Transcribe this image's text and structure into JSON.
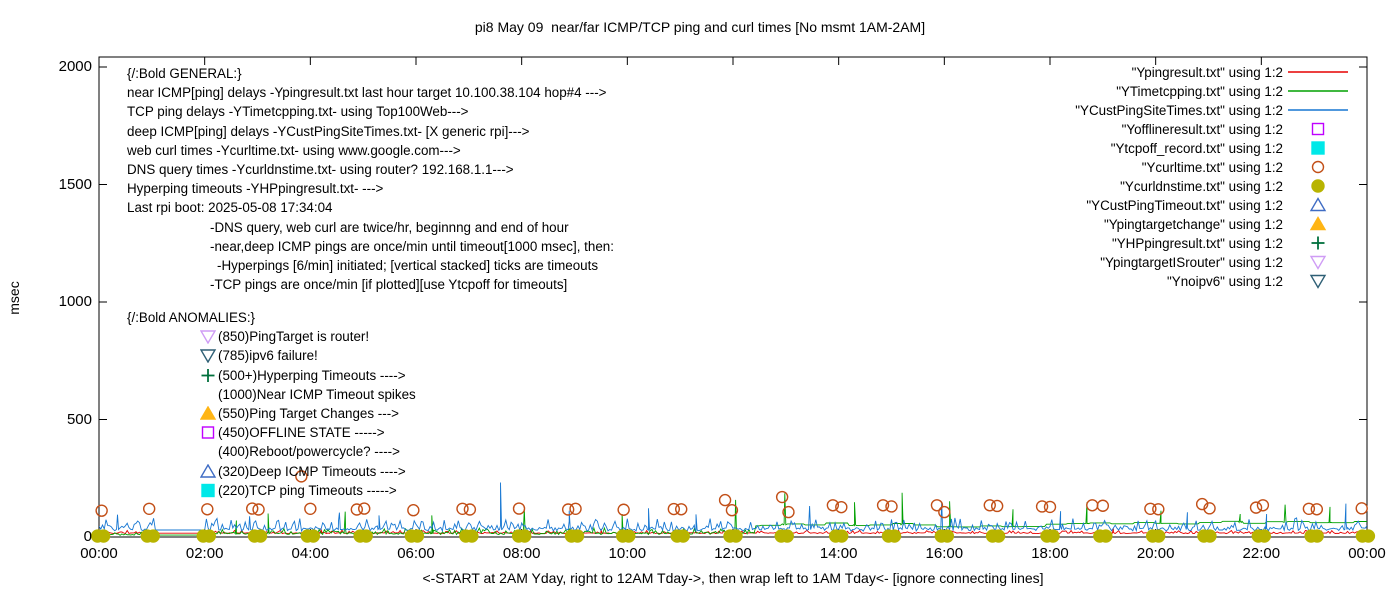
{
  "title": "pi8 May 09  near/far ICMP/TCP ping and curl times [No msmt 1AM-2AM]",
  "y_axis": {
    "label": "msec",
    "ticks": [
      0,
      500,
      1000,
      1500,
      2000
    ]
  },
  "x_axis": {
    "labels": [
      "00:00",
      "02:00",
      "04:00",
      "06:00",
      "08:00",
      "10:00",
      "12:00",
      "14:00",
      "16:00",
      "18:00",
      "20:00",
      "22:00",
      "00:00"
    ],
    "footer": "<-START at 2AM Yday, right to 12AM Tday->, then wrap left to 1AM Tday<- [ignore connecting lines]"
  },
  "colors": {
    "axis": "#000000",
    "red": "#e60000",
    "green": "#00a000",
    "blue": "#1777d2",
    "magenta": "#bf00ff",
    "cyan": "#00e8e8",
    "orange_circle": "#c24f17",
    "olive": "#b8b400",
    "blue_triangle": "#3f6cc4",
    "gold_triangle": "#ffb515",
    "dark_green": "#00703c",
    "violet": "#cf9cf5",
    "steel": "#2e5f75"
  },
  "general": {
    "lines": [
      {
        "indent": 0,
        "text": "{/:Bold GENERAL:}"
      },
      {
        "indent": 0,
        "text": "near ICMP[ping] delays -Ypingresult.txt last hour target 10.100.38.104 hop#4 --->"
      },
      {
        "indent": 0,
        "text": "TCP ping delays -YTimetcpping.txt- using Top100Web--->"
      },
      {
        "indent": 0,
        "text": "deep ICMP[ping] delays -YCustPingSiteTimes.txt- [X generic rpi]--->"
      },
      {
        "indent": 0,
        "text": "web curl times -Ycurltime.txt- using www.google.com--->"
      },
      {
        "indent": 0,
        "text": "DNS query times -Ycurldnstime.txt- using router? 192.168.1.1--->"
      },
      {
        "indent": 0,
        "text": "Hyperping timeouts -YHPpingresult.txt- --->"
      },
      {
        "indent": 0,
        "text": "Last rpi boot: 2025-05-08 17:34:04"
      },
      {
        "indent": 83,
        "text": "-DNS query, web curl are twice/hr, beginnng and end of hour"
      },
      {
        "indent": 83,
        "text": "-near,deep ICMP pings are once/min until timeout[1000 msec], then:"
      },
      {
        "indent": 90,
        "text": "-Hyperpings [6/min] initiated; [vertical stacked] ticks are timeouts"
      },
      {
        "indent": 83,
        "text": "-TCP pings are once/min [if plotted][use Ytcpoff for timeouts]"
      }
    ]
  },
  "anomalies": {
    "header": "{/:Bold ANOMALIES:}",
    "lines": [
      {
        "marker": "tri-down-open",
        "color": "#cf9cf5",
        "text": "(850)PingTarget is router!"
      },
      {
        "marker": "tri-down-open",
        "color": "#2e5f75",
        "text": "(785)ipv6 failure!"
      },
      {
        "marker": "plus",
        "color": "#00703c",
        "text": "(500+)Hyperping Timeouts ---->"
      },
      {
        "marker": null,
        "color": null,
        "text": "(1000)Near ICMP Timeout spikes"
      },
      {
        "marker": "tri-up-filled",
        "color": "#ffb515",
        "text": "(550)Ping Target Changes --->"
      },
      {
        "marker": "square-open",
        "color": "#bf00ff",
        "text": "(450)OFFLINE STATE ----->"
      },
      {
        "marker": null,
        "color": null,
        "text": "(400)Reboot/powercycle? ---->"
      },
      {
        "marker": "tri-up-open",
        "color": "#3f6cc4",
        "text": "(320)Deep ICMP Timeouts ---->"
      },
      {
        "marker": "square-filled",
        "color": "#00e8e8",
        "text": "(220)TCP ping Timeouts ----->"
      }
    ]
  },
  "legend": {
    "entries": [
      {
        "label": "\"Ypingresult.txt\" using 1:2",
        "sample": "line",
        "color": "#e60000"
      },
      {
        "label": "\"YTimetcpping.txt\" using 1:2",
        "sample": "line",
        "color": "#00a000"
      },
      {
        "label": "\"YCustPingSiteTimes.txt\" using 1:2",
        "sample": "line",
        "color": "#1777d2"
      },
      {
        "label": "\"Yofflineresult.txt\" using 1:2",
        "sample": "square-open",
        "color": "#bf00ff"
      },
      {
        "label": "\"Ytcpoff_record.txt\" using 1:2",
        "sample": "square-filled",
        "color": "#00e8e8"
      },
      {
        "label": "\"Ycurltime.txt\" using 1:2",
        "sample": "circle-open",
        "color": "#c24f17"
      },
      {
        "label": "\"Ycurldnstime.txt\" using 1:2",
        "sample": "circle-filled",
        "color": "#b8b400"
      },
      {
        "label": "\"YCustPingTimeout.txt\" using 1:2",
        "sample": "tri-up-open",
        "color": "#3f6cc4"
      },
      {
        "label": "\"Ypingtargetchange\" using 1:2",
        "sample": "tri-up-filled",
        "color": "#ffb515"
      },
      {
        "label": "\"YHPpingresult.txt\" using 1:2",
        "sample": "plus",
        "color": "#00703c"
      },
      {
        "label": "\"YpingtargetISrouter\" using 1:2",
        "sample": "tri-down-open",
        "color": "#cf9cf5"
      },
      {
        "label": "\"Ynoipv6\" using 1:2",
        "sample": "tri-down-open",
        "color": "#2e5f75"
      }
    ]
  },
  "chart_data": {
    "type": "line",
    "x_unit": "hours (00:00-24:00, 2h major ticks)",
    "xlim_hours": [
      0,
      24
    ],
    "ylabel": "msec",
    "ylim": [
      0,
      2000
    ],
    "grid": false,
    "legend_position": "top-right inside",
    "no_measurement_window_hours": [
      1.05,
      2.0
    ],
    "series": [
      {
        "name": "Ypingresult.txt",
        "style": "line",
        "color": "#e60000",
        "seed": 11,
        "segments": [
          {
            "from": 0,
            "to": 1.05,
            "base": 16,
            "amp": 6
          },
          {
            "from": 1.05,
            "to": 2.0,
            "base": 16,
            "amp": 0
          },
          {
            "from": 2.0,
            "to": 24.1,
            "base": 16,
            "amp": 6
          }
        ],
        "spikes": [
          [
            4.2,
            38
          ],
          [
            9.5,
            34
          ],
          [
            19.2,
            36
          ]
        ]
      },
      {
        "name": "YTimetcpping.txt",
        "style": "line",
        "color": "#00a000",
        "seed": 22,
        "segments": [
          {
            "from": 0,
            "to": 1.05,
            "base": 11,
            "amp": 12
          },
          {
            "from": 1.05,
            "to": 2.0,
            "base": 8,
            "amp": 0
          },
          {
            "from": 2.0,
            "to": 12.4,
            "base": 14,
            "amp": 12
          },
          {
            "from": 12.4,
            "to": 15.8,
            "base": 52,
            "amp": 6,
            "hold": true
          },
          {
            "from": 15.8,
            "to": 17.9,
            "base": 46,
            "amp": 6,
            "hold": true
          },
          {
            "from": 17.9,
            "to": 21.2,
            "base": 58,
            "amp": 5,
            "hold": true
          },
          {
            "from": 21.2,
            "to": 24.1,
            "base": 62,
            "amp": 6,
            "hold": true
          }
        ],
        "spikes": [
          [
            2.6,
            70
          ],
          [
            3.2,
            100
          ],
          [
            4.66,
            108
          ],
          [
            6.3,
            92
          ],
          [
            8.05,
            118
          ],
          [
            9.9,
            98
          ],
          [
            12.05,
            158
          ],
          [
            12.98,
            186
          ],
          [
            14.3,
            148
          ],
          [
            15.2,
            188
          ],
          [
            16.1,
            152
          ],
          [
            17.3,
            118
          ],
          [
            18.7,
            148
          ],
          [
            20.1,
            112
          ],
          [
            21.6,
            98
          ],
          [
            22.45,
            138
          ],
          [
            23.3,
            128
          ]
        ]
      },
      {
        "name": "YCustPingSiteTimes.txt",
        "style": "line",
        "color": "#1777d2",
        "seed": 33,
        "segments": [
          {
            "from": 0,
            "to": 1.05,
            "base": 32,
            "amp": 22
          },
          {
            "from": 1.05,
            "to": 2.0,
            "base": 30,
            "amp": 0
          },
          {
            "from": 2.0,
            "to": 24.1,
            "base": 32,
            "amp": 22
          }
        ],
        "spikes": [
          [
            0.35,
            95
          ],
          [
            2.85,
            88
          ],
          [
            4.55,
            104
          ],
          [
            5.3,
            92
          ],
          [
            7.6,
            232
          ],
          [
            8.9,
            112
          ],
          [
            10.4,
            122
          ],
          [
            11.3,
            96
          ],
          [
            13.45,
            132
          ],
          [
            15.95,
            150
          ],
          [
            18.2,
            110
          ],
          [
            20.6,
            105
          ],
          [
            22.1,
            98
          ],
          [
            23.6,
            142
          ]
        ]
      },
      {
        "name": "Yofflineresult.txt",
        "style": "scatter",
        "marker": "square-open",
        "color": "#bf00ff",
        "points": []
      },
      {
        "name": "Ytcpoff_record.txt",
        "style": "scatter",
        "marker": "square-filled",
        "color": "#00e8e8",
        "points": []
      },
      {
        "name": "Ycurltime.txt",
        "style": "scatter",
        "marker": "circle-open",
        "color": "#c24f17",
        "points": [
          [
            0.05,
            112
          ],
          [
            0.95,
            120
          ],
          [
            2.05,
            118
          ],
          [
            2.9,
            121
          ],
          [
            3.02,
            117
          ],
          [
            3.83,
            258
          ],
          [
            4.0,
            120
          ],
          [
            4.88,
            117
          ],
          [
            5.02,
            121
          ],
          [
            5.95,
            114
          ],
          [
            6.88,
            120
          ],
          [
            7.02,
            117
          ],
          [
            7.95,
            121
          ],
          [
            8.88,
            117
          ],
          [
            9.02,
            120
          ],
          [
            9.93,
            116
          ],
          [
            10.88,
            119
          ],
          [
            11.02,
            118
          ],
          [
            11.85,
            157
          ],
          [
            11.98,
            114
          ],
          [
            12.93,
            170
          ],
          [
            13.05,
            106
          ],
          [
            13.89,
            135
          ],
          [
            14.05,
            127
          ],
          [
            14.84,
            135
          ],
          [
            15.0,
            130
          ],
          [
            15.86,
            135
          ],
          [
            16.0,
            106
          ],
          [
            16.86,
            135
          ],
          [
            17.0,
            132
          ],
          [
            17.85,
            130
          ],
          [
            18.0,
            128
          ],
          [
            18.8,
            135
          ],
          [
            19.0,
            133
          ],
          [
            19.9,
            120
          ],
          [
            20.05,
            118
          ],
          [
            20.88,
            140
          ],
          [
            21.02,
            122
          ],
          [
            21.9,
            125
          ],
          [
            22.03,
            135
          ],
          [
            22.9,
            120
          ],
          [
            23.05,
            118
          ],
          [
            23.9,
            122
          ]
        ]
      },
      {
        "name": "Ycurldnstime.txt",
        "style": "scatter-pair",
        "marker": "circle-filled",
        "color": "#b8b400",
        "value": 4,
        "cluster_centers": [
          0.03,
          0.97,
          2.03,
          3.0,
          4.0,
          5.0,
          5.97,
          7.0,
          8.0,
          9.0,
          9.97,
          11.0,
          12.0,
          12.97,
          14.0,
          15.0,
          16.0,
          16.97,
          18.0,
          19.0,
          20.0,
          20.97,
          22.0,
          23.0,
          23.97
        ]
      },
      {
        "name": "YCustPingTimeout.txt",
        "style": "scatter",
        "marker": "tri-up-open",
        "color": "#3f6cc4",
        "points": []
      },
      {
        "name": "Ypingtargetchange",
        "style": "scatter",
        "marker": "tri-up-filled",
        "color": "#ffb515",
        "points": []
      },
      {
        "name": "YHPpingresult.txt",
        "style": "scatter",
        "marker": "plus",
        "color": "#00703c",
        "points": []
      },
      {
        "name": "YpingtargetISrouter",
        "style": "scatter",
        "marker": "tri-down-open",
        "color": "#cf9cf5",
        "points": []
      },
      {
        "name": "Ynoipv6",
        "style": "scatter",
        "marker": "tri-down-open",
        "color": "#2e5f75",
        "points": []
      }
    ]
  }
}
